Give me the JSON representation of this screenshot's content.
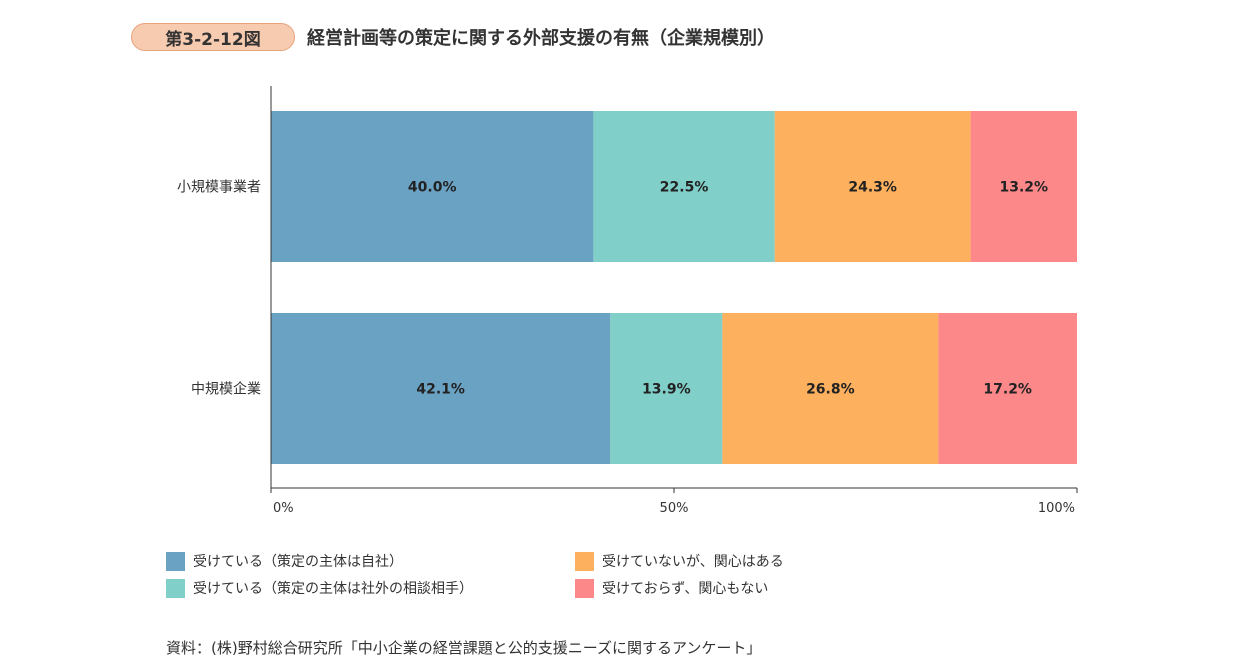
{
  "figure": {
    "number": "第3-2-12図",
    "title": "経営計画等の策定に関する外部支援の有無（企業規模別）"
  },
  "chart_data": {
    "type": "bar",
    "orientation": "horizontal",
    "stacked": true,
    "categories": [
      "小規模事業者",
      "中規模企業"
    ],
    "series": [
      {
        "name": "受けている（策定の主体は自社）",
        "values": [
          40.0,
          42.1
        ],
        "labels": [
          "40.0%",
          "42.1%"
        ],
        "color": "#6aa2c3"
      },
      {
        "name": "受けている（策定の主体は社外の相談相手）",
        "values": [
          22.5,
          13.9
        ],
        "labels": [
          "22.5%",
          "13.9%"
        ],
        "color": "#80cfc8"
      },
      {
        "name": "受けていないが、関心はある",
        "values": [
          24.3,
          26.8
        ],
        "labels": [
          "24.3%",
          "26.8%"
        ],
        "color": "#fdb05e"
      },
      {
        "name": "受けておらず、関心もない",
        "values": [
          13.2,
          17.2
        ],
        "labels": [
          "13.2%",
          "17.2%"
        ],
        "color": "#fd888a"
      }
    ],
    "xlim": [
      0,
      100
    ],
    "x_ticks": [
      {
        "value": 0,
        "label": "0%"
      },
      {
        "value": 50,
        "label": "50%"
      },
      {
        "value": 100,
        "label": "100%"
      }
    ],
    "grid": false,
    "legend_position": "bottom"
  },
  "source": "資料：(株)野村総合研究所「中小企業の経営課題と公的支援ニーズに関するアンケート」"
}
